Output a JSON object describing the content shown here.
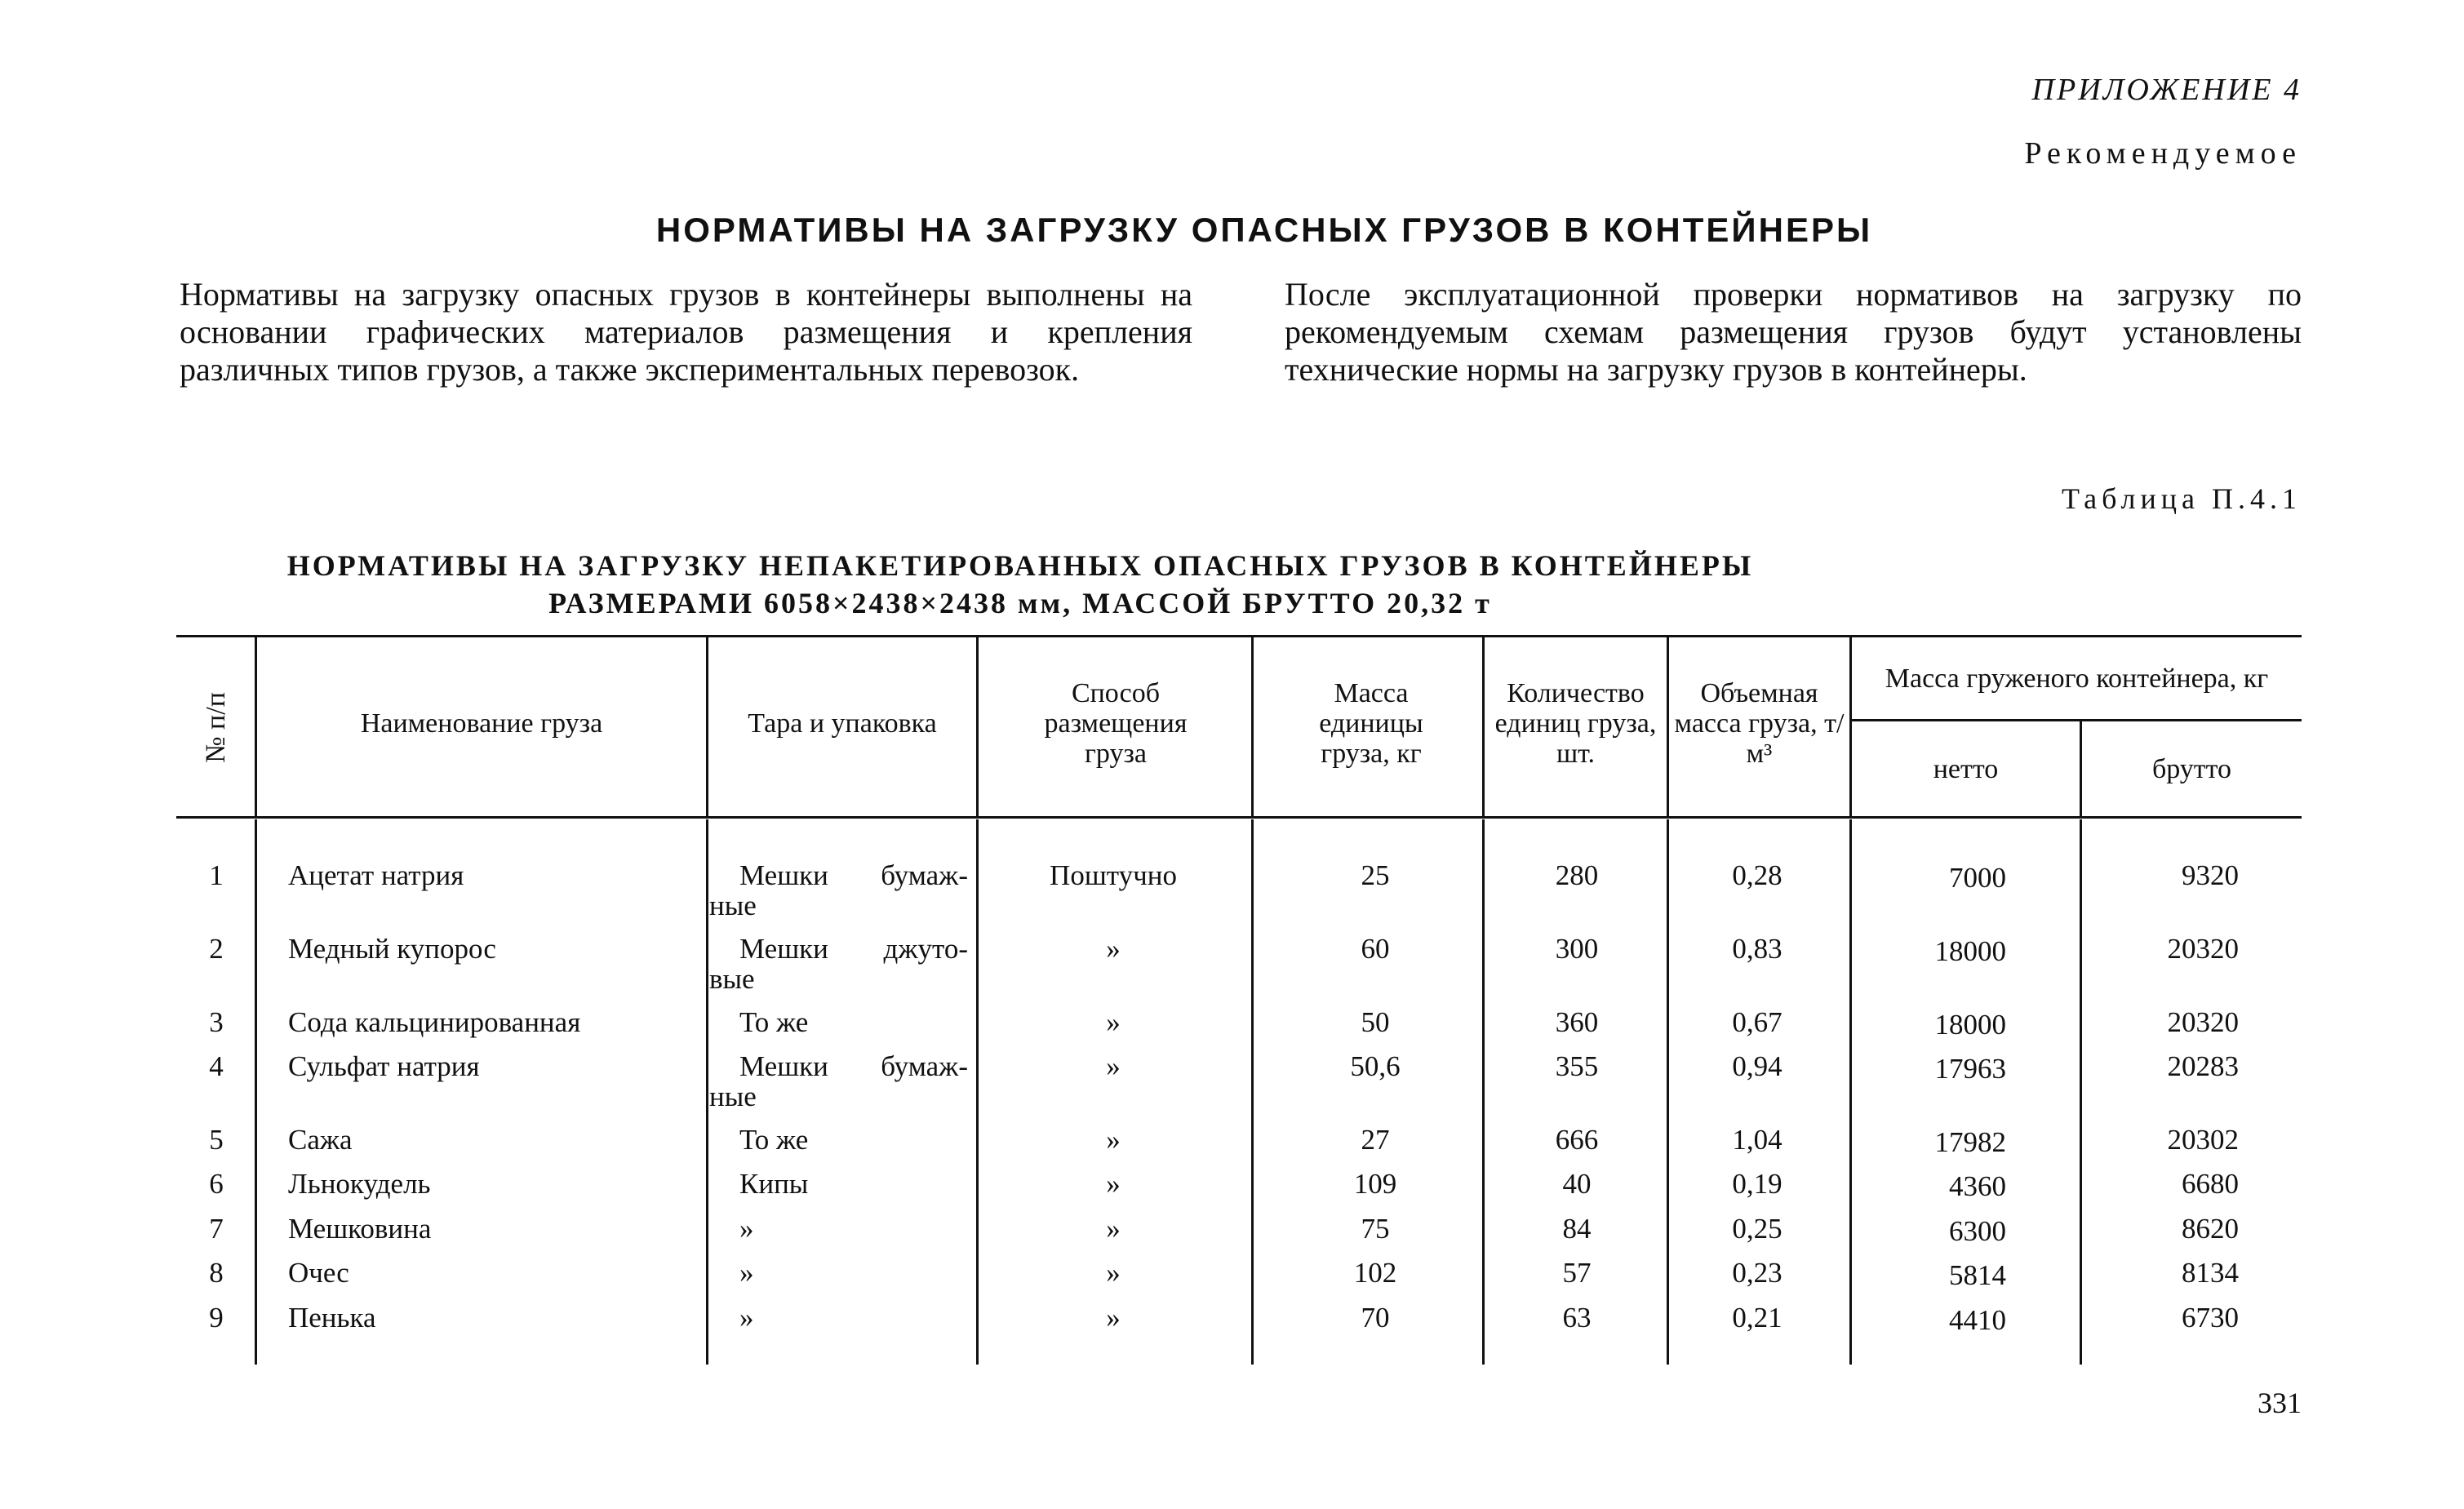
{
  "header": {
    "appendix": "ПРИЛОЖЕНИЕ 4",
    "status": "Рекомендуемое",
    "title": "НОРМАТИВЫ НА ЗАГРУЗКУ ОПАСНЫХ ГРУЗОВ В КОНТЕЙНЕРЫ"
  },
  "intro": {
    "left": "Нормативы на загрузку опасных грузов в контейнеры выполнены на основании графических материалов размещения и крепления различных типов грузов, а также экспериментальных перевозок.",
    "right": "После эксплуатационной проверки нормативов на загрузку по рекомендуемым схемам размещения грузов будут установлены технические нормы на загрузку грузов в контейнеры."
  },
  "table": {
    "number": "Таблица П.4.1",
    "title_line1": "НОРМАТИВЫ НА ЗАГРУЗКУ НЕПАКЕТИРОВАННЫХ ОПАСНЫХ ГРУЗОВ В КОНТЕЙНЕРЫ",
    "title_line2": "РАЗМЕРАМИ 6058×2438×2438 мм, МАССОЙ БРУТТО 20,32 т",
    "columns": {
      "num": "№ п/п",
      "name": "Наименование груза",
      "tara": "Тара и упаковка",
      "method": "Способ размещения груза",
      "unit_mass": "Масса единицы груза, кг",
      "count": "Количество единиц груза, шт.",
      "volume_mass": "Объемная масса груза, т/м³",
      "container_mass": "Масса груженого контейнера, кг",
      "net": "нетто",
      "gross": "брутто"
    },
    "rows": [
      {
        "num": "1",
        "name": "Ацетат натрия",
        "tara": [
          "Мешки бумаж-",
          "ные"
        ],
        "method": "Поштучно",
        "unit_mass": "25",
        "count": "280",
        "volume_mass": "0,28",
        "net": "7000",
        "gross": "9320"
      },
      {
        "num": "2",
        "name": "Медный купорос",
        "tara": [
          "Мешки джуто-",
          "вые"
        ],
        "method": "»",
        "unit_mass": "60",
        "count": "300",
        "volume_mass": "0,83",
        "net": "18000",
        "gross": "20320"
      },
      {
        "num": "3",
        "name": "Сода кальцинированная",
        "tara": [
          "То же"
        ],
        "method": "»",
        "unit_mass": "50",
        "count": "360",
        "volume_mass": "0,67",
        "net": "18000",
        "gross": "20320"
      },
      {
        "num": "4",
        "name": "Сульфат натрия",
        "tara": [
          "Мешки бумаж-",
          "ные"
        ],
        "method": "»",
        "unit_mass": "50,6",
        "count": "355",
        "volume_mass": "0,94",
        "net": "17963",
        "gross": "20283"
      },
      {
        "num": "5",
        "name": "Сажа",
        "tara": [
          "То же"
        ],
        "method": "»",
        "unit_mass": "27",
        "count": "666",
        "volume_mass": "1,04",
        "net": "17982",
        "gross": "20302"
      },
      {
        "num": "6",
        "name": "Льнокудель",
        "tara": [
          "Кипы"
        ],
        "method": "»",
        "unit_mass": "109",
        "count": "40",
        "volume_mass": "0,19",
        "net": "4360",
        "gross": "6680"
      },
      {
        "num": "7",
        "name": "Мешковина",
        "tara": [
          "»"
        ],
        "method": "»",
        "unit_mass": "75",
        "count": "84",
        "volume_mass": "0,25",
        "net": "6300",
        "gross": "8620"
      },
      {
        "num": "8",
        "name": "Очес",
        "tara": [
          "»"
        ],
        "method": "»",
        "unit_mass": "102",
        "count": "57",
        "volume_mass": "0,23",
        "net": "5814",
        "gross": "8134"
      },
      {
        "num": "9",
        "name": "Пенька",
        "tara": [
          "»"
        ],
        "method": "»",
        "unit_mass": "70",
        "count": "63",
        "volume_mass": "0,21",
        "net": "4410",
        "gross": "6730"
      }
    ]
  },
  "page_number": "331"
}
